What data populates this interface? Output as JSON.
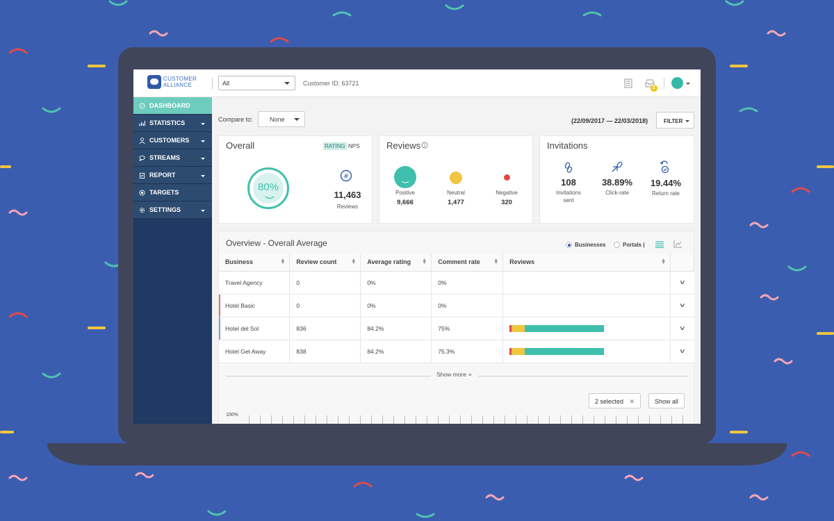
{
  "app": {
    "logo_line1": "CUSTOMER",
    "logo_line2": "ALLIANCE",
    "business_select": "All",
    "customer_id": "Customer ID: 63721",
    "notification_count": "2"
  },
  "sidebar": {
    "items": [
      {
        "label": "DASHBOARD",
        "icon": "compass-icon",
        "active": true,
        "has_caret": false
      },
      {
        "label": "STATISTICS",
        "icon": "bar-chart-icon",
        "active": false,
        "has_caret": true
      },
      {
        "label": "CUSTOMERS",
        "icon": "user-icon",
        "active": false,
        "has_caret": true
      },
      {
        "label": "STREAMS",
        "icon": "chat-icon",
        "active": false,
        "has_caret": true
      },
      {
        "label": "REPORT",
        "icon": "clipboard-icon",
        "active": false,
        "has_caret": true
      },
      {
        "label": "TARGETS",
        "icon": "target-icon",
        "active": false,
        "has_caret": false
      },
      {
        "label": "SETTINGS",
        "icon": "gear-icon",
        "active": false,
        "has_caret": true
      }
    ]
  },
  "filters": {
    "compare_label": "Compare to:",
    "compare_value": "None",
    "date_range": "(22/09/2017 — 22/03/2018)",
    "filter_label": "FILTER"
  },
  "overall": {
    "title": "Overall",
    "tab_rating": "RATING",
    "tab_nps": "NPS",
    "score": "80%",
    "review_count": "11,463",
    "review_label": "Reviews"
  },
  "reviews": {
    "title": "Reviews",
    "positive_label": "Positive",
    "positive_value": "9,666",
    "neutral_label": "Neutral",
    "neutral_value": "1,477",
    "negative_label": "Negative",
    "negative_value": "320",
    "colors": {
      "positive": "#40bfae",
      "neutral": "#f0c640",
      "negative": "#e04a4a"
    }
  },
  "invitations": {
    "title": "Invitations",
    "sent_value": "108",
    "sent_label_1": "Invitations",
    "sent_label_2": "sent",
    "click_value": "38.89%",
    "click_label": "Click-rate",
    "return_value": "19.44%",
    "return_label": "Return rate"
  },
  "overview": {
    "title": "Overview - Overall Average",
    "radio_businesses": "Businesses",
    "radio_portals": "Portals |",
    "columns": [
      "Business",
      "Review count",
      "Average rating",
      "Comment rate",
      "Reviews"
    ],
    "rows": [
      {
        "business": "Travel Agency",
        "review_count": "0",
        "average_rating": "0%",
        "comment_rate": "0%",
        "marker": "",
        "bar": null
      },
      {
        "business": "Hotel Basic",
        "review_count": "0",
        "average_rating": "0%",
        "comment_rate": "0%",
        "marker": "#e07070",
        "bar": null
      },
      {
        "business": "Hotel del Sol",
        "review_count": "836",
        "average_rating": "84.2%",
        "comment_rate": "75%",
        "marker": "#7a9fd6",
        "bar": {
          "negative": 0.02,
          "neutral": 0.14,
          "positive": 0.84
        }
      },
      {
        "business": "Hotel Get Away",
        "review_count": "838",
        "average_rating": "84.2%",
        "comment_rate": "75.3%",
        "marker": "",
        "bar": {
          "negative": 0.02,
          "neutral": 0.14,
          "positive": 0.84
        }
      }
    ],
    "show_more": "Show more",
    "selected": "2 selected",
    "show_all": "Show all",
    "axis_top": "100%"
  }
}
